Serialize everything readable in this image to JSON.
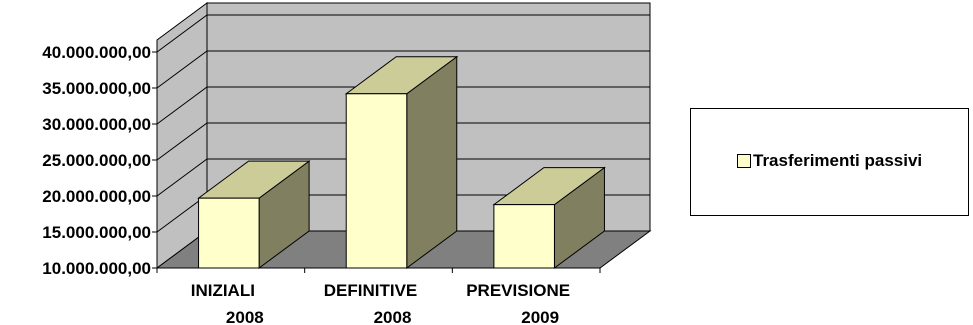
{
  "chart_data": {
    "type": "bar",
    "categories": [
      [
        "INIZIALI",
        "2008"
      ],
      [
        "DEFINITIVE",
        "2008"
      ],
      [
        "PREVISIONE",
        "2009"
      ]
    ],
    "series": [
      {
        "name": "Trasferimenti passivi",
        "values": [
          19700000,
          34200000,
          18800000
        ]
      }
    ],
    "yticks": [
      "10.000.000,00",
      "15.000.000,00",
      "20.000.000,00",
      "25.000.000,00",
      "30.000.000,00",
      "35.000.000,00",
      "40.000.000,00"
    ],
    "ylim": [
      10000000,
      40000000
    ],
    "grid": true,
    "legend": "right",
    "colors": {
      "bar_front": "#ffffcc",
      "bar_top": "#cccc99",
      "bar_side": "#808060",
      "wall": "#c0c0c0",
      "floor": "#808080"
    }
  }
}
